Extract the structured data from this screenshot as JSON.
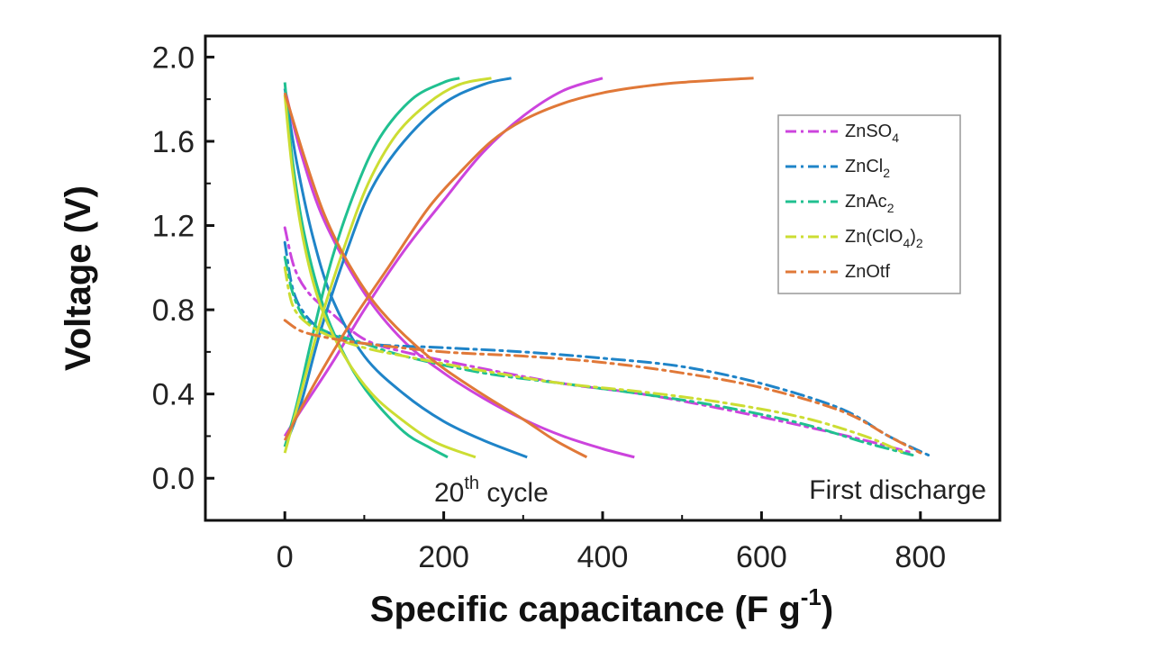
{
  "chart_data": {
    "type": "line",
    "xlabel": "Specific capacitance (F g",
    "xlabel_sup": "-1",
    "xlabel_end": ")",
    "ylabel": "Voltage (V)",
    "xlim": [
      -100,
      900
    ],
    "ylim": [
      -0.2,
      2.1
    ],
    "xticks": [
      0,
      200,
      400,
      600,
      800
    ],
    "yticks": [
      0.0,
      0.4,
      0.8,
      1.2,
      1.6,
      2.0
    ],
    "ytick_labels": [
      "0.0",
      "0.4",
      "0.8",
      "1.2",
      "1.6",
      "2.0"
    ],
    "legend_position": "top-right",
    "grid": false,
    "annotations": {
      "cycle_main": "20",
      "cycle_sup": "th",
      "cycle_end": " cycle",
      "first_discharge": "First discharge"
    },
    "series": [
      {
        "name_main": "ZnSO",
        "name_sub": "4",
        "name_tail": "",
        "color": "#cc44dd",
        "first_discharge": [
          [
            0,
            1.19
          ],
          [
            12,
            1.0
          ],
          [
            30,
            0.88
          ],
          [
            60,
            0.78
          ],
          [
            100,
            0.66
          ],
          [
            150,
            0.6
          ],
          [
            250,
            0.52
          ],
          [
            350,
            0.45
          ],
          [
            450,
            0.4
          ],
          [
            550,
            0.33
          ],
          [
            650,
            0.25
          ],
          [
            730,
            0.18
          ],
          [
            790,
            0.12
          ]
        ],
        "cycle_charge": [
          [
            0,
            0.2
          ],
          [
            20,
            0.32
          ],
          [
            60,
            0.55
          ],
          [
            100,
            0.8
          ],
          [
            150,
            1.08
          ],
          [
            200,
            1.32
          ],
          [
            250,
            1.55
          ],
          [
            300,
            1.72
          ],
          [
            350,
            1.84
          ],
          [
            400,
            1.9
          ]
        ],
        "cycle_discharge": [
          [
            0,
            1.85
          ],
          [
            20,
            1.55
          ],
          [
            50,
            1.22
          ],
          [
            100,
            0.88
          ],
          [
            150,
            0.65
          ],
          [
            200,
            0.5
          ],
          [
            250,
            0.38
          ],
          [
            300,
            0.28
          ],
          [
            350,
            0.2
          ],
          [
            400,
            0.14
          ],
          [
            440,
            0.1
          ]
        ]
      },
      {
        "name_main": "ZnCl",
        "name_sub": "2",
        "name_tail": "",
        "color": "#1f84c8",
        "first_discharge": [
          [
            0,
            1.12
          ],
          [
            10,
            0.9
          ],
          [
            25,
            0.78
          ],
          [
            50,
            0.7
          ],
          [
            100,
            0.64
          ],
          [
            200,
            0.62
          ],
          [
            300,
            0.6
          ],
          [
            400,
            0.57
          ],
          [
            500,
            0.53
          ],
          [
            600,
            0.45
          ],
          [
            700,
            0.33
          ],
          [
            760,
            0.2
          ],
          [
            810,
            0.11
          ]
        ],
        "cycle_charge": [
          [
            0,
            0.15
          ],
          [
            20,
            0.35
          ],
          [
            45,
            0.7
          ],
          [
            80,
            1.1
          ],
          [
            110,
            1.38
          ],
          [
            150,
            1.6
          ],
          [
            200,
            1.78
          ],
          [
            250,
            1.87
          ],
          [
            285,
            1.9
          ]
        ],
        "cycle_discharge": [
          [
            0,
            1.85
          ],
          [
            15,
            1.5
          ],
          [
            35,
            1.15
          ],
          [
            60,
            0.85
          ],
          [
            100,
            0.58
          ],
          [
            150,
            0.4
          ],
          [
            200,
            0.27
          ],
          [
            250,
            0.18
          ],
          [
            305,
            0.1
          ]
        ]
      },
      {
        "name_main": "ZnAc",
        "name_sub": "2",
        "name_tail": "",
        "color": "#20c090",
        "first_discharge": [
          [
            0,
            1.05
          ],
          [
            10,
            0.88
          ],
          [
            25,
            0.76
          ],
          [
            50,
            0.7
          ],
          [
            100,
            0.64
          ],
          [
            150,
            0.58
          ],
          [
            250,
            0.5
          ],
          [
            350,
            0.45
          ],
          [
            450,
            0.4
          ],
          [
            550,
            0.34
          ],
          [
            650,
            0.26
          ],
          [
            730,
            0.17
          ],
          [
            790,
            0.11
          ]
        ],
        "cycle_charge": [
          [
            0,
            0.15
          ],
          [
            15,
            0.35
          ],
          [
            35,
            0.68
          ],
          [
            60,
            1.05
          ],
          [
            90,
            1.38
          ],
          [
            120,
            1.62
          ],
          [
            160,
            1.8
          ],
          [
            200,
            1.88
          ],
          [
            220,
            1.9
          ]
        ],
        "cycle_discharge": [
          [
            0,
            1.88
          ],
          [
            10,
            1.5
          ],
          [
            25,
            1.15
          ],
          [
            50,
            0.8
          ],
          [
            80,
            0.55
          ],
          [
            110,
            0.38
          ],
          [
            150,
            0.22
          ],
          [
            180,
            0.15
          ],
          [
            205,
            0.1
          ]
        ]
      },
      {
        "name_main": "Zn(ClO",
        "name_sub": "4",
        "name_tail": ")2",
        "color": "#ccdd33",
        "first_discharge": [
          [
            0,
            1.0
          ],
          [
            10,
            0.82
          ],
          [
            30,
            0.73
          ],
          [
            60,
            0.67
          ],
          [
            100,
            0.62
          ],
          [
            150,
            0.58
          ],
          [
            250,
            0.51
          ],
          [
            350,
            0.45
          ],
          [
            450,
            0.41
          ],
          [
            550,
            0.36
          ],
          [
            650,
            0.29
          ],
          [
            730,
            0.2
          ],
          [
            780,
            0.12
          ]
        ],
        "cycle_charge": [
          [
            0,
            0.12
          ],
          [
            20,
            0.4
          ],
          [
            45,
            0.75
          ],
          [
            75,
            1.1
          ],
          [
            105,
            1.4
          ],
          [
            140,
            1.63
          ],
          [
            180,
            1.78
          ],
          [
            220,
            1.87
          ],
          [
            260,
            1.9
          ]
        ],
        "cycle_discharge": [
          [
            0,
            1.82
          ],
          [
            10,
            1.45
          ],
          [
            25,
            1.1
          ],
          [
            45,
            0.82
          ],
          [
            75,
            0.58
          ],
          [
            110,
            0.4
          ],
          [
            150,
            0.27
          ],
          [
            190,
            0.17
          ],
          [
            240,
            0.1
          ]
        ]
      },
      {
        "name_main": "ZnOtf",
        "name_sub": "",
        "name_tail": "",
        "color": "#e07838",
        "first_discharge": [
          [
            0,
            0.75
          ],
          [
            20,
            0.7
          ],
          [
            50,
            0.67
          ],
          [
            100,
            0.64
          ],
          [
            200,
            0.6
          ],
          [
            300,
            0.58
          ],
          [
            400,
            0.55
          ],
          [
            500,
            0.5
          ],
          [
            600,
            0.43
          ],
          [
            700,
            0.32
          ],
          [
            760,
            0.2
          ],
          [
            800,
            0.12
          ]
        ],
        "cycle_charge": [
          [
            0,
            0.18
          ],
          [
            30,
            0.4
          ],
          [
            80,
            0.72
          ],
          [
            130,
            1.0
          ],
          [
            180,
            1.28
          ],
          [
            220,
            1.45
          ],
          [
            260,
            1.6
          ],
          [
            300,
            1.7
          ],
          [
            350,
            1.78
          ],
          [
            400,
            1.83
          ],
          [
            450,
            1.86
          ],
          [
            500,
            1.88
          ],
          [
            590,
            1.9
          ]
        ],
        "cycle_discharge": [
          [
            0,
            1.83
          ],
          [
            25,
            1.52
          ],
          [
            50,
            1.25
          ],
          [
            80,
            1.02
          ],
          [
            120,
            0.8
          ],
          [
            180,
            0.58
          ],
          [
            240,
            0.42
          ],
          [
            300,
            0.28
          ],
          [
            340,
            0.18
          ],
          [
            380,
            0.1
          ]
        ]
      }
    ]
  }
}
